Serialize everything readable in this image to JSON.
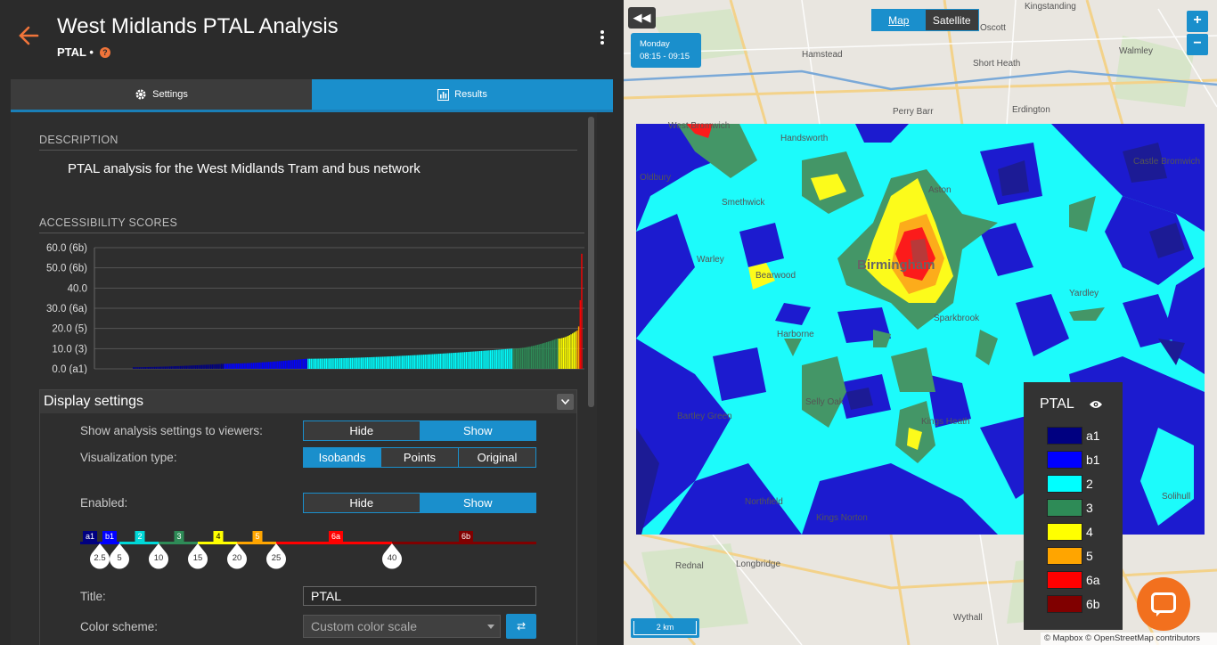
{
  "header": {
    "title": "West Midlands PTAL Analysis",
    "subtitle": "PTAL •",
    "help_glyph": "?"
  },
  "tabs": [
    {
      "label": "Settings",
      "icon": "gear-icon",
      "active": false
    },
    {
      "label": "Results",
      "icon": "bar-chart-icon",
      "active": true
    }
  ],
  "description": {
    "heading": "DESCRIPTION",
    "text": "PTAL analysis for the West Midlands Tram and bus network"
  },
  "scores": {
    "heading": "ACCESSIBILITY SCORES"
  },
  "chart_data": {
    "type": "bar",
    "title": "",
    "xlabel": "",
    "ylabel": "",
    "ylim": [
      0,
      60
    ],
    "y_ticks": [
      "60.0 (6b)",
      "50.0 (6b)",
      "40.0",
      "30.0 (6a)",
      "20.0 (5)",
      "10.0 (3)",
      "0.0 (a1)"
    ],
    "y_tick_values": [
      60,
      50,
      40,
      30,
      20,
      10,
      0
    ],
    "grid": true,
    "segments": [
      {
        "category": "a1",
        "color": "#000080",
        "count": 60,
        "start": 0.8,
        "end": 2.5
      },
      {
        "category": "b1",
        "color": "#0000ff",
        "count": 55,
        "start": 2.5,
        "end": 5
      },
      {
        "category": "2",
        "color": "#00ffff",
        "count": 135,
        "start": 5,
        "end": 10
      },
      {
        "category": "3",
        "color": "#2e8b57",
        "count": 30,
        "start": 10,
        "end": 15
      },
      {
        "category": "4",
        "color": "#ffff00",
        "count": 12,
        "start": 15,
        "end": 18.5
      },
      {
        "category": "5",
        "color": "#ffa500",
        "count": 2,
        "start": 19,
        "end": 21
      },
      {
        "category": "6a",
        "color": "#ff0000",
        "count": 2,
        "start": 34,
        "end": 57
      },
      {
        "category": "6b",
        "color": "#800000",
        "count": 0,
        "start": 57,
        "end": 57
      }
    ]
  },
  "display": {
    "title": "Display settings",
    "show_settings_label": "Show analysis settings to viewers:",
    "show_settings_options": [
      "Hide",
      "Show"
    ],
    "show_settings_selected": 1,
    "viz_label": "Visualization type:",
    "viz_options": [
      "Isobands",
      "Points",
      "Original"
    ],
    "viz_selected": 0,
    "enabled_label": "Enabled:",
    "enabled_options": [
      "Hide",
      "Show"
    ],
    "enabled_selected": 1,
    "title_label": "Title:",
    "title_value": "PTAL",
    "scheme_label": "Color scheme:",
    "scheme_value": "Custom color scale",
    "swap_glyph": "⇄"
  },
  "scale_bar": {
    "categories": [
      {
        "label": "a1",
        "color": "#000080"
      },
      {
        "label": "b1",
        "color": "#0000ff"
      },
      {
        "label": "2",
        "color": "#00d8d8"
      },
      {
        "label": "3",
        "color": "#2e8b57"
      },
      {
        "label": "4",
        "color": "#ffff00"
      },
      {
        "label": "5",
        "color": "#ffa500"
      },
      {
        "label": "6a",
        "color": "#ff0000"
      },
      {
        "label": "6b",
        "color": "#800000"
      }
    ],
    "breaks": [
      "2.5",
      "5",
      "10",
      "15",
      "20",
      "25",
      "40"
    ]
  },
  "map": {
    "panel_toggle": "◀◀",
    "day": "Monday",
    "time_range": "08:15 - 09:15",
    "type_options": [
      "Map",
      "Satellite"
    ],
    "type_selected": 0,
    "zoom_in": "+",
    "zoom_out": "−",
    "scale_label": "2 km",
    "attribution": "© Mapbox © OpenStreetMap contributors",
    "places": [
      {
        "name": "West Bromwich"
      },
      {
        "name": "Birmingham"
      },
      {
        "name": "Erdington"
      },
      {
        "name": "Perry Barr"
      },
      {
        "name": "Handsworth"
      },
      {
        "name": "Smethwick"
      },
      {
        "name": "Oldbury"
      },
      {
        "name": "Warley"
      },
      {
        "name": "Bearwood"
      },
      {
        "name": "Harborne"
      },
      {
        "name": "Selly Oak"
      },
      {
        "name": "Kings Heath"
      },
      {
        "name": "Kings Norton"
      },
      {
        "name": "Northfield"
      },
      {
        "name": "Bartley Green"
      },
      {
        "name": "Rednal"
      },
      {
        "name": "Longbridge"
      },
      {
        "name": "Wythall"
      },
      {
        "name": "Solihull"
      },
      {
        "name": "Castle Bromwich"
      },
      {
        "name": "Hamstead"
      },
      {
        "name": "Short Heath"
      },
      {
        "name": "Walmley"
      },
      {
        "name": "Oscott"
      },
      {
        "name": "Kingstanding"
      },
      {
        "name": "Aston"
      },
      {
        "name": "Sparkbrook"
      },
      {
        "name": "Yardley"
      }
    ]
  },
  "legend": {
    "title": "PTAL",
    "items": [
      {
        "label": "a1",
        "color": "#000080"
      },
      {
        "label": "b1",
        "color": "#0000ff"
      },
      {
        "label": "2",
        "color": "#00ffff"
      },
      {
        "label": "3",
        "color": "#2e8b57"
      },
      {
        "label": "4",
        "color": "#ffff00"
      },
      {
        "label": "5",
        "color": "#ffa500"
      },
      {
        "label": "6a",
        "color": "#ff0000"
      },
      {
        "label": "6b",
        "color": "#800000"
      }
    ]
  }
}
